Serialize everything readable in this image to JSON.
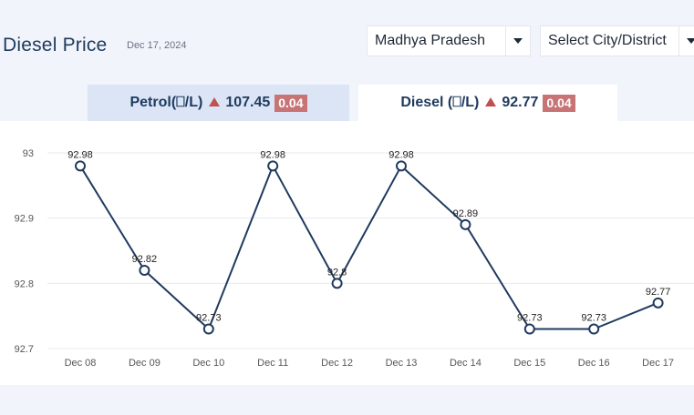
{
  "header": {
    "title": "Diesel Price",
    "date": "Dec 17, 2024",
    "state_select": "Madhya Pradesh",
    "city_select": "Select City/District"
  },
  "tabs": [
    {
      "label": "Petrol(⎕/L)",
      "price": "107.45",
      "change": "0.04",
      "active": false
    },
    {
      "label": "Diesel (⎕/L)",
      "price": "92.77",
      "change": "0.04",
      "active": true
    }
  ],
  "colors": {
    "line": "#1f3a5f",
    "change_badge": "#c97474",
    "up_arrow": "#c0504d",
    "active_tab": "#ffffff",
    "inactive_tab": "#dbe5f6"
  },
  "chart_data": {
    "type": "line",
    "categories": [
      "Dec 08",
      "Dec 09",
      "Dec 10",
      "Dec 11",
      "Dec 12",
      "Dec 13",
      "Dec 14",
      "Dec 15",
      "Dec 16",
      "Dec 17"
    ],
    "values": [
      92.98,
      92.82,
      92.73,
      92.98,
      92.8,
      92.98,
      92.89,
      92.73,
      92.73,
      92.77
    ],
    "data_labels": [
      "92.98",
      "92.82",
      "92.73",
      "92.98",
      "92.8",
      "92.98",
      "92.89",
      "92.73",
      "92.73",
      "92.77"
    ],
    "ylim": [
      92.7,
      93
    ],
    "yticks": [
      "93",
      "92.9",
      "92.8",
      "92.7"
    ],
    "ytick_values": [
      93,
      92.9,
      92.8,
      92.7
    ],
    "grid": true,
    "legend": "none"
  }
}
